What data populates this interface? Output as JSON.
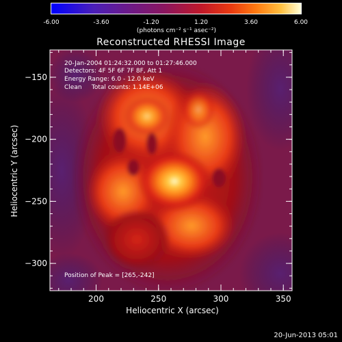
{
  "chart_data": {
    "type": "heatmap",
    "title": "Reconstructed RHESSI Image",
    "xlabel": "Heliocentric X (arcsec)",
    "ylabel": "Heliocentric Y (arcsec)",
    "xlim": [
      163,
      357
    ],
    "ylim": [
      -322,
      -128
    ],
    "xticks": [
      200,
      250,
      300,
      350
    ],
    "yticks": [
      -150,
      -200,
      -250,
      -300
    ],
    "colorbar": {
      "range": [
        -6.0,
        6.0
      ],
      "ticks": [
        "-6.00",
        "-3.60",
        "-1.20",
        "1.20",
        "3.60",
        "6.00"
      ],
      "label": "(photons cm⁻² s⁻¹ asec⁻²)"
    },
    "annotations": [
      "20-Jan-2004 01:24:32.000 to 01:27:46.000",
      "Detectors: 4F 5F 6F 7F 8F, Att 1",
      "Energy Range: 6.0 - 12.0 keV",
      "Clean     Total counts: 1.14E+06"
    ],
    "peak": {
      "label": "Position of Peak = [265,-242]",
      "x": 265,
      "y": -242
    }
  },
  "timestamp": "20-Jun-2013 05:01"
}
